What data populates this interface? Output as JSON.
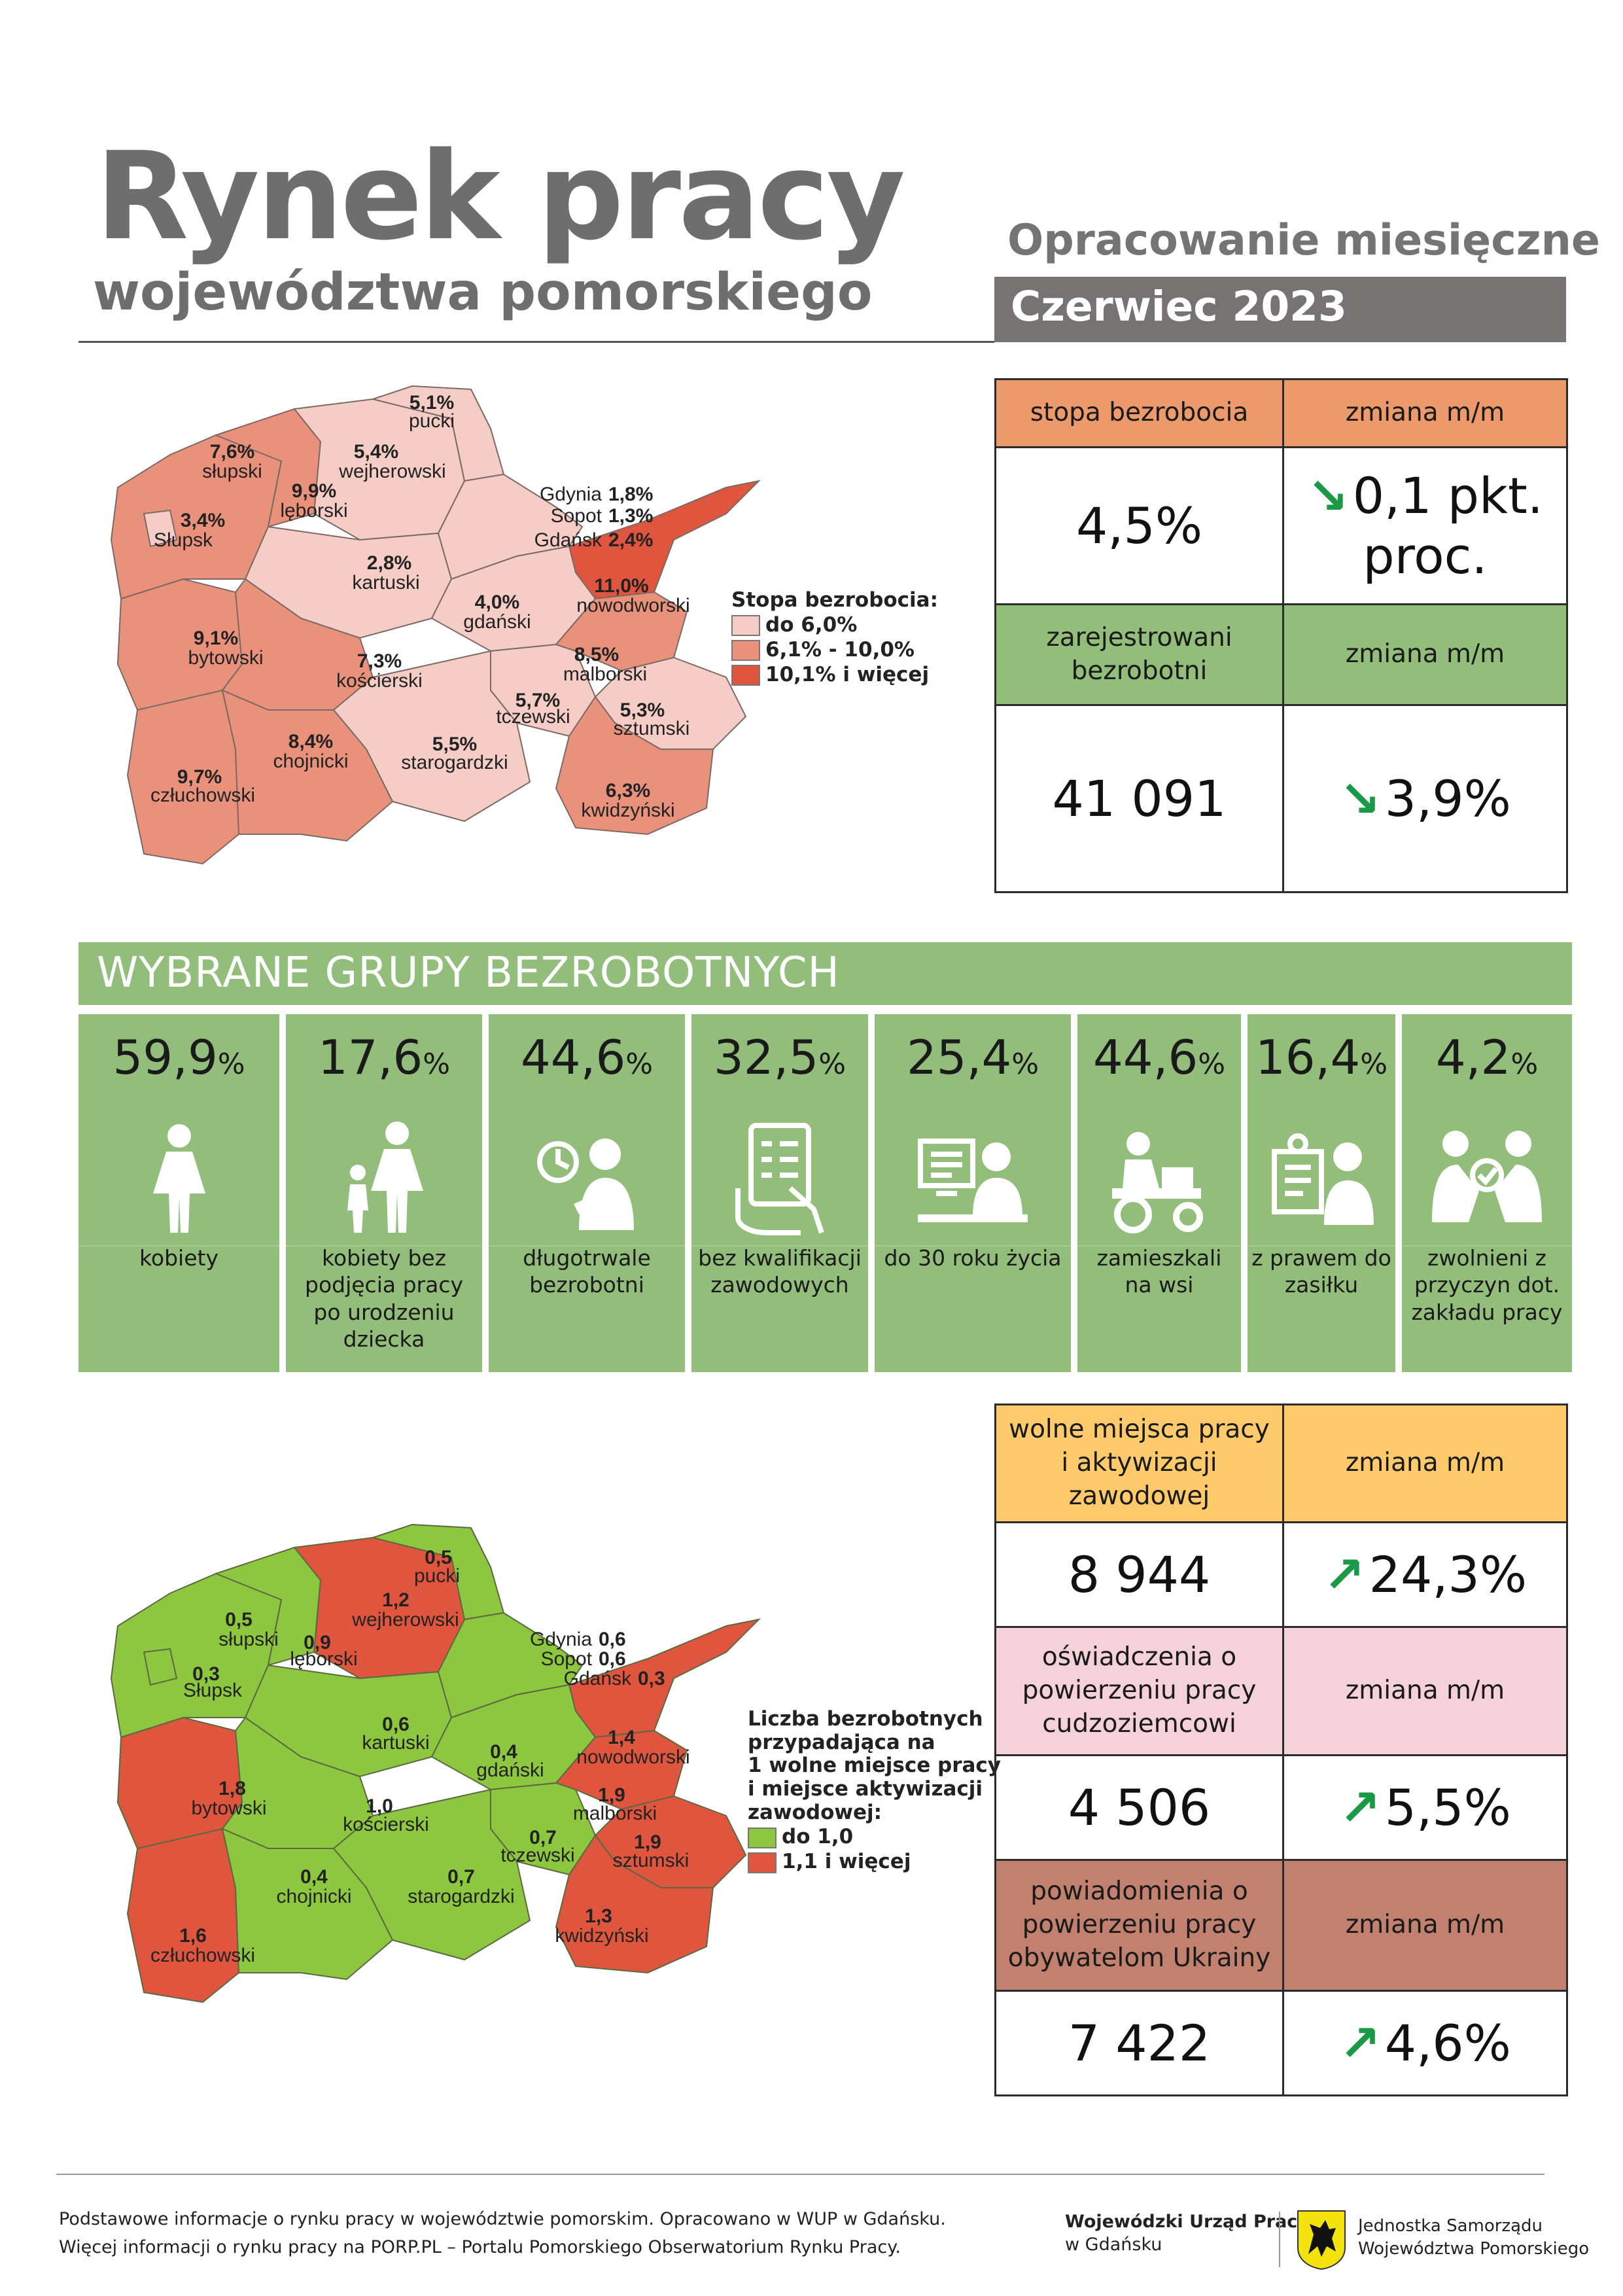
{
  "header": {
    "title": "Rynek pracy",
    "subtitle": "województwa pomorskiego",
    "kind": "Opracowanie miesięczne",
    "period": "Czerwiec 2023"
  },
  "unemployment_map": {
    "legend": {
      "title": "Stopa bezrobocia:",
      "items": [
        {
          "label": "do 6,0%",
          "color": "#f6cdc6"
        },
        {
          "label": "6,1% - 10,0%",
          "color": "#e9917b"
        },
        {
          "label": "10,1% i więcej",
          "color": "#e0553e"
        }
      ]
    },
    "regions": [
      {
        "name": "pucki",
        "value": "5,1%",
        "color": "#f6cdc6"
      },
      {
        "name": "słupski",
        "value": "7,6%",
        "color": "#e9917b"
      },
      {
        "name": "wejherowski",
        "value": "5,4%",
        "color": "#f6cdc6"
      },
      {
        "name": "lęborski",
        "value": "9,9%",
        "color": "#e9917b"
      },
      {
        "name": "Słupsk",
        "value": "3,4%",
        "color": "#f6cdc6"
      },
      {
        "name": "Gdynia",
        "value": "1,8%",
        "color": "#f6cdc6"
      },
      {
        "name": "Sopot",
        "value": "1,3%",
        "color": "#f6cdc6"
      },
      {
        "name": "Gdańsk",
        "value": "2,4%",
        "color": "#f6cdc6"
      },
      {
        "name": "kartuski",
        "value": "2,8%",
        "color": "#f6cdc6"
      },
      {
        "name": "nowodworski",
        "value": "11,0%",
        "color": "#e0553e"
      },
      {
        "name": "bytowski",
        "value": "9,1%",
        "color": "#e9917b"
      },
      {
        "name": "gdański",
        "value": "4,0%",
        "color": "#f6cdc6"
      },
      {
        "name": "kościerski",
        "value": "7,3%",
        "color": "#e9917b"
      },
      {
        "name": "malborski",
        "value": "8,5%",
        "color": "#e9917b"
      },
      {
        "name": "tczewski",
        "value": "5,7%",
        "color": "#f6cdc6"
      },
      {
        "name": "sztumski",
        "value": "5,3%",
        "color": "#f6cdc6"
      },
      {
        "name": "chojnicki",
        "value": "8,4%",
        "color": "#e9917b"
      },
      {
        "name": "starogardzki",
        "value": "5,5%",
        "color": "#f6cdc6"
      },
      {
        "name": "kwidzyński",
        "value": "6,3%",
        "color": "#e9917b"
      },
      {
        "name": "człuchowski",
        "value": "9,7%",
        "color": "#e9917b"
      }
    ]
  },
  "stats_top": {
    "rate_label": "stopa bezrobocia",
    "change_label_1": "zmiana m/m",
    "rate_value": "4,5%",
    "rate_change_line1": "0,1 pkt.",
    "rate_change_line2": "proc.",
    "registered_label": "zarejestrowani bezrobotni",
    "change_label_2": "zmiana m/m",
    "registered_value": "41 091",
    "registered_change": "3,9%",
    "arrow_down": "↘"
  },
  "groups": {
    "title": "WYBRANE GRUPY BEZROBOTNYCH",
    "items": [
      {
        "pct": "59,9",
        "unit": "%",
        "label": "kobiety",
        "icon": "woman-icon"
      },
      {
        "pct": "17,6",
        "unit": "%",
        "label": "kobiety bez podjęcia pracy po urodzeniu dziecka",
        "icon": "mother-child-icon"
      },
      {
        "pct": "44,6",
        "unit": "%",
        "label": "długotrwale bezrobotni",
        "icon": "clock-person-icon"
      },
      {
        "pct": "32,5",
        "unit": "%",
        "label": "bez kwalifikacji zawodowych",
        "icon": "tablet-checklist-icon"
      },
      {
        "pct": "25,4",
        "unit": "%",
        "label": "do 30 roku życia",
        "icon": "young-person-computer-icon"
      },
      {
        "pct": "44,6",
        "unit": "%",
        "label": "zamieszkali na wsi",
        "icon": "tractor-icon"
      },
      {
        "pct": "16,4",
        "unit": "%",
        "label": "z prawem do zasiłku",
        "icon": "benefit-document-icon"
      },
      {
        "pct": "4,2",
        "unit": "%",
        "label": "zwolnieni z przyczyn dot. zakładu pracy",
        "icon": "handshake-icon"
      }
    ]
  },
  "offers_map": {
    "legend": {
      "title_line1": "Liczba bezrobotnych",
      "title_line2": "przypadająca na",
      "title_line3": "1 wolne miejsce pracy",
      "title_line4": "i miejsce aktywizacji",
      "title_line5": "zawodowej:",
      "items": [
        {
          "label": "do 1,0",
          "color": "#8dc63f"
        },
        {
          "label": "1,1 i więcej",
          "color": "#e0553e"
        }
      ]
    },
    "regions": [
      {
        "name": "pucki",
        "value": "0,5",
        "color": "#8dc63f"
      },
      {
        "name": "słupski",
        "value": "0,5",
        "color": "#8dc63f"
      },
      {
        "name": "wejherowski",
        "value": "1,2",
        "color": "#e0553e"
      },
      {
        "name": "lęborski",
        "value": "0,9",
        "color": "#8dc63f"
      },
      {
        "name": "Słupsk",
        "value": "0,3",
        "color": "#8dc63f"
      },
      {
        "name": "Gdynia",
        "value": "0,6",
        "color": "#8dc63f"
      },
      {
        "name": "Sopot",
        "value": "0,6",
        "color": "#8dc63f"
      },
      {
        "name": "Gdańsk",
        "value": "0,3",
        "color": "#8dc63f"
      },
      {
        "name": "kartuski",
        "value": "0,6",
        "color": "#8dc63f"
      },
      {
        "name": "nowodworski",
        "value": "1,4",
        "color": "#e0553e"
      },
      {
        "name": "bytowski",
        "value": "1,8",
        "color": "#e0553e"
      },
      {
        "name": "gdański",
        "value": "0,4",
        "color": "#8dc63f"
      },
      {
        "name": "kościerski",
        "value": "1,0",
        "color": "#8dc63f"
      },
      {
        "name": "malborski",
        "value": "1,9",
        "color": "#e0553e"
      },
      {
        "name": "tczewski",
        "value": "0,7",
        "color": "#8dc63f"
      },
      {
        "name": "sztumski",
        "value": "1,9",
        "color": "#e0553e"
      },
      {
        "name": "chojnicki",
        "value": "0,4",
        "color": "#8dc63f"
      },
      {
        "name": "starogardzki",
        "value": "0,7",
        "color": "#8dc63f"
      },
      {
        "name": "kwidzyński",
        "value": "1,3",
        "color": "#e0553e"
      },
      {
        "name": "człuchowski",
        "value": "1,6",
        "color": "#e0553e"
      }
    ]
  },
  "stats_bottom": {
    "offers_label": "wolne miejsca pracy i aktywizacji zawodowej",
    "change_label_1": "zmiana m/m",
    "offers_value": "8 944",
    "offers_change": "24,3%",
    "declarations_label": "oświadczenia o powierzeniu pracy cudzoziemcowi",
    "change_label_2": "zmiana m/m",
    "declarations_value": "4 506",
    "declarations_change": "5,5%",
    "ukraine_label": "powiadomienia o powierzeniu pracy obywatelom Ukrainy",
    "change_label_3": "zmiana m/m",
    "ukraine_value": "7 422",
    "ukraine_change": "4,6%",
    "arrow_up": "↗"
  },
  "footer": {
    "line1": "Podstawowe informacje o rynku pracy w województwie pomorskim. Opracowano w WUP w Gdańsku.",
    "line2": "Więcej informacji o rynku pracy na PORP.PL – Portalu Pomorskiego Obserwatorium Rynku Pracy.",
    "logo1_name": "Wojewódzki Urząd Pracy",
    "logo1_city": "w Gdańsku",
    "logo2_line1": "Jednostka Samorządu",
    "logo2_line2": "Województwa Pomorskiego"
  }
}
